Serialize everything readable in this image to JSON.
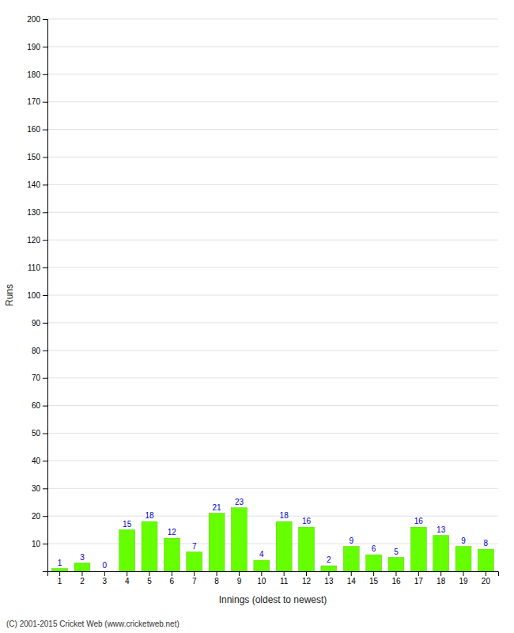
{
  "chart_data": {
    "type": "bar",
    "xlabel": "Innings (oldest to newest)",
    "ylabel": "Runs",
    "categories": [
      "1",
      "2",
      "3",
      "4",
      "5",
      "6",
      "7",
      "8",
      "9",
      "10",
      "11",
      "12",
      "13",
      "14",
      "15",
      "16",
      "17",
      "18",
      "19",
      "20"
    ],
    "values": [
      1,
      3,
      0,
      15,
      18,
      12,
      7,
      21,
      23,
      4,
      18,
      16,
      2,
      9,
      6,
      5,
      16,
      13,
      9,
      8
    ],
    "color": "#66ff00",
    "ylim": [
      0,
      200
    ],
    "yticks": [
      {
        "value": 0,
        "label": null
      },
      10,
      20,
      30,
      40,
      50,
      60,
      70,
      80,
      90,
      100,
      110,
      120,
      130,
      140,
      150,
      160,
      170,
      180,
      190,
      200
    ],
    "grid": true,
    "data_labels": true,
    "annotations": [
      "(C) 2001-2015 Cricket Web (www.cricketweb.net)"
    ]
  }
}
